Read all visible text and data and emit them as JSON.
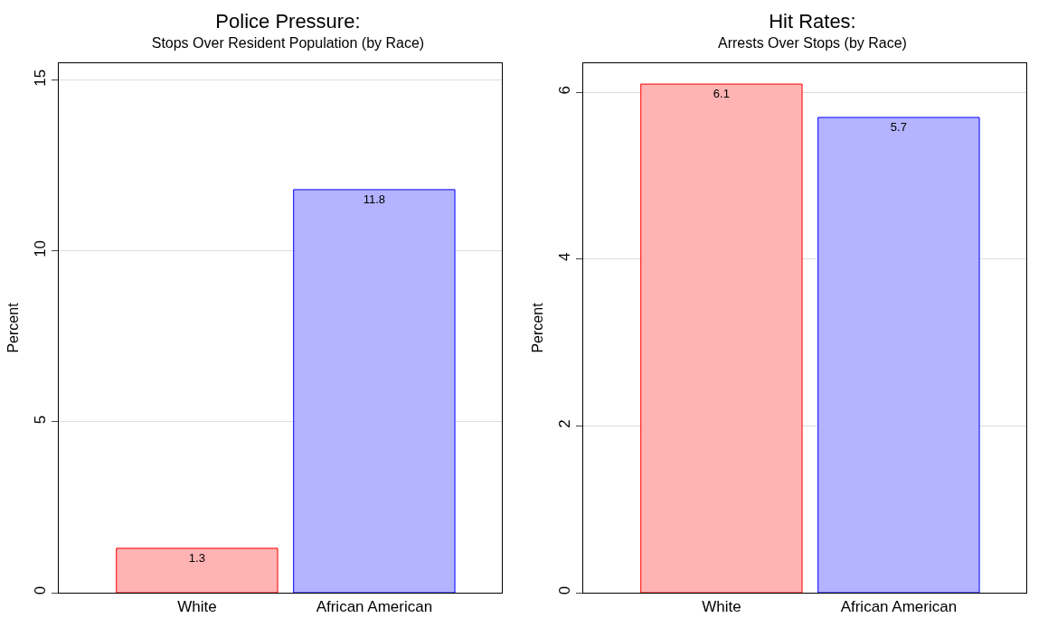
{
  "chart_data": [
    {
      "type": "bar",
      "title": "Police Pressure:",
      "subtitle": "Stops Over Resident Population (by Race)",
      "ylabel": "Percent",
      "categories": [
        "White",
        "African American"
      ],
      "values": [
        1.3,
        11.8
      ],
      "colors": [
        "#ffb3b3",
        "#b3b3ff"
      ],
      "data_labels": true,
      "ylim": [
        0,
        15.5
      ],
      "yticks": [
        0,
        5,
        10,
        15
      ],
      "grid": "y"
    },
    {
      "type": "bar",
      "title": "Hit Rates:",
      "subtitle": "Arrests Over Stops (by Race)",
      "ylabel": "Percent",
      "categories": [
        "White",
        "African American"
      ],
      "values": [
        6.1,
        5.7
      ],
      "colors": [
        "#ffb3b3",
        "#b3b3ff"
      ],
      "data_labels": true,
      "ylim": [
        0,
        6.35
      ],
      "yticks": [
        0,
        2,
        4,
        6
      ],
      "grid": "y"
    }
  ]
}
